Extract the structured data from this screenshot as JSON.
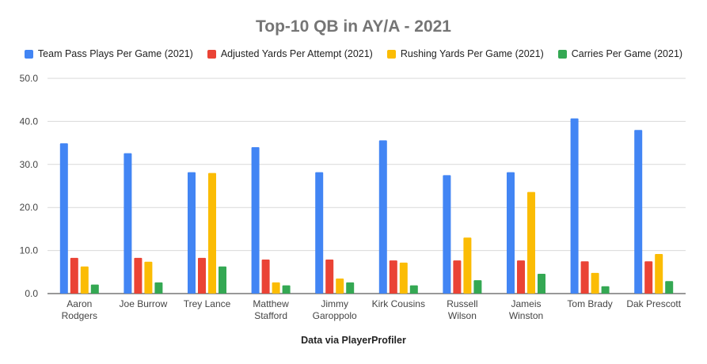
{
  "chart_data": {
    "type": "bar",
    "title": "Top-10 QB in AY/A - 2021",
    "xlabel": "Data via PlayerProfiler",
    "ylabel": "",
    "ylim": [
      0,
      50
    ],
    "yticks": [
      "0.0",
      "10.0",
      "20.0",
      "30.0",
      "40.0",
      "50.0"
    ],
    "grid": true,
    "legend_position": "top",
    "categories": [
      [
        "Aaron",
        "Rodgers"
      ],
      [
        "Joe Burrow"
      ],
      [
        "Trey Lance"
      ],
      [
        "Matthew",
        "Stafford"
      ],
      [
        "Jimmy",
        "Garoppolo"
      ],
      [
        "Kirk Cousins"
      ],
      [
        "Russell",
        "Wilson"
      ],
      [
        "Jameis",
        "Winston"
      ],
      [
        "Tom Brady"
      ],
      [
        "Dak Prescott"
      ]
    ],
    "series": [
      {
        "name": "Team Pass Plays Per Game (2021)",
        "color": "#4285F4",
        "values": [
          34.9,
          32.6,
          28.2,
          34.0,
          28.2,
          35.6,
          27.5,
          28.2,
          40.7,
          38.0
        ]
      },
      {
        "name": "Adjusted Yards Per Attempt (2021)",
        "color": "#EA4335",
        "values": [
          8.3,
          8.3,
          8.3,
          7.9,
          7.9,
          7.7,
          7.7,
          7.7,
          7.5,
          7.5
        ]
      },
      {
        "name": "Rushing Yards Per Game (2021)",
        "color": "#FBBC04",
        "values": [
          6.3,
          7.4,
          28.0,
          2.6,
          3.5,
          7.2,
          13.0,
          23.6,
          4.8,
          9.2
        ]
      },
      {
        "name": "Carries Per Game (2021)",
        "color": "#34A853",
        "values": [
          2.1,
          2.6,
          6.3,
          1.9,
          2.6,
          1.9,
          3.1,
          4.6,
          1.7,
          2.9
        ]
      }
    ]
  }
}
